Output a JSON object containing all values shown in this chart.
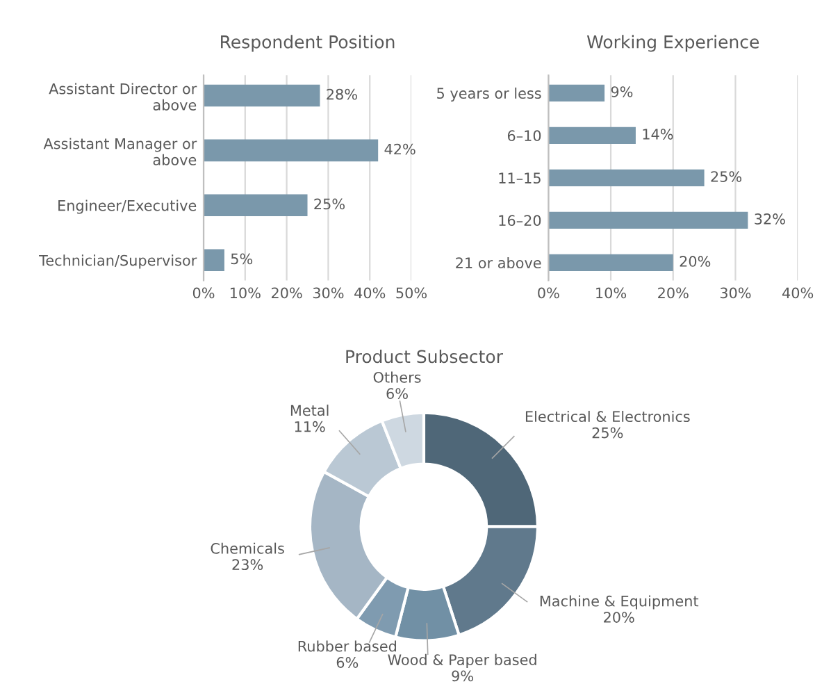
{
  "chart_data": [
    {
      "type": "bar",
      "orientation": "horizontal",
      "title": "Respondent Position",
      "categories": [
        "Assistant Director or above",
        "Assistant Manager or above",
        "Engineer/Executive",
        "Technician/Supervisor"
      ],
      "values": [
        28,
        42,
        25,
        5
      ],
      "value_labels": [
        "28%",
        "42%",
        "25%",
        "5%"
      ],
      "color": "#7a98ab",
      "xlim": [
        0,
        50
      ],
      "xticks": [
        {
          "value": 0,
          "label": "0%"
        },
        {
          "value": 10,
          "label": "10%"
        },
        {
          "value": 20,
          "label": "20%"
        },
        {
          "value": 30,
          "label": "30%"
        },
        {
          "value": 40,
          "label": "40%"
        },
        {
          "value": 50,
          "label": "50%"
        }
      ],
      "grid": "x"
    },
    {
      "type": "bar",
      "orientation": "horizontal",
      "title": "Working Experience",
      "categories": [
        "5 years or less",
        "6–10",
        "11–15",
        "16–20",
        "21 or above"
      ],
      "values": [
        9,
        14,
        25,
        32,
        20
      ],
      "value_labels": [
        "9%",
        "14%",
        "25%",
        "32%",
        "20%"
      ],
      "color": "#7a98ab",
      "xlim": [
        0,
        40
      ],
      "xticks": [
        {
          "value": 0,
          "label": "0%"
        },
        {
          "value": 10,
          "label": "10%"
        },
        {
          "value": 20,
          "label": "20%"
        },
        {
          "value": 30,
          "label": "30%"
        },
        {
          "value": 40,
          "label": "40%"
        }
      ],
      "grid": "x"
    },
    {
      "type": "donut",
      "title": "Product Subsector",
      "categories": [
        "Electrical & Electronics",
        "Machine & Equipment",
        "Wood & Paper based",
        "Rubber based",
        "Chemicals",
        "Metal",
        "Others"
      ],
      "values": [
        25,
        20,
        9,
        6,
        23,
        11,
        6
      ],
      "value_labels": [
        "25%",
        "20%",
        "9%",
        "6%",
        "23%",
        "11%",
        "6%"
      ],
      "colors": [
        "#4f6778",
        "#60798c",
        "#7190a5",
        "#7f9bb0",
        "#a5b6c5",
        "#bac8d4",
        "#ced8e1"
      ]
    }
  ]
}
